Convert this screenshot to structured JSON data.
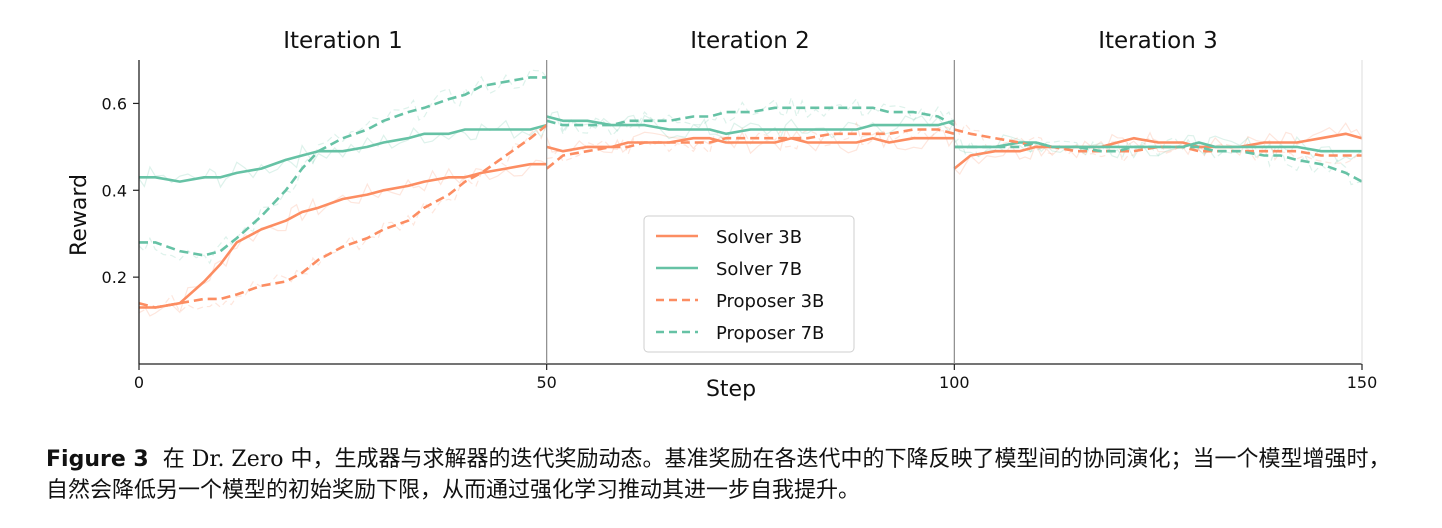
{
  "chart_data": {
    "type": "line",
    "panel_titles": [
      "Iteration 1",
      "Iteration 2",
      "Iteration 3"
    ],
    "xlabel": "Step",
    "ylabel": "Reward",
    "xlim": [
      0,
      150
    ],
    "ylim": [
      0.0,
      0.7
    ],
    "xticks": [
      0,
      50,
      100,
      150
    ],
    "yticks": [
      0.2,
      0.4,
      0.6
    ],
    "panel_boundaries": [
      50,
      100
    ],
    "grid": false,
    "legend_position": "center",
    "series": [
      {
        "name": "Solver 3B",
        "color": "#fc8d62",
        "style": "solid",
        "x": [
          0,
          2,
          5,
          8,
          10,
          12,
          15,
          18,
          20,
          22,
          25,
          28,
          30,
          33,
          35,
          38,
          40,
          42,
          45,
          48,
          50,
          50,
          52,
          55,
          58,
          60,
          62,
          65,
          68,
          70,
          72,
          75,
          78,
          80,
          82,
          85,
          88,
          90,
          92,
          95,
          98,
          100,
          100,
          102,
          105,
          108,
          110,
          112,
          115,
          118,
          120,
          122,
          125,
          128,
          130,
          132,
          135,
          138,
          140,
          142,
          145,
          148,
          150
        ],
        "y": [
          0.13,
          0.13,
          0.14,
          0.19,
          0.23,
          0.28,
          0.31,
          0.33,
          0.35,
          0.36,
          0.38,
          0.39,
          0.4,
          0.41,
          0.42,
          0.43,
          0.43,
          0.44,
          0.45,
          0.46,
          0.46,
          0.5,
          0.49,
          0.5,
          0.5,
          0.51,
          0.51,
          0.51,
          0.52,
          0.52,
          0.51,
          0.51,
          0.51,
          0.52,
          0.51,
          0.51,
          0.51,
          0.52,
          0.51,
          0.52,
          0.52,
          0.52,
          0.45,
          0.48,
          0.49,
          0.49,
          0.5,
          0.5,
          0.5,
          0.5,
          0.51,
          0.52,
          0.51,
          0.51,
          0.5,
          0.5,
          0.5,
          0.51,
          0.51,
          0.51,
          0.52,
          0.53,
          0.52
        ]
      },
      {
        "name": "Solver 7B",
        "color": "#66c2a5",
        "style": "solid",
        "x": [
          0,
          2,
          5,
          8,
          10,
          12,
          15,
          18,
          20,
          22,
          25,
          28,
          30,
          33,
          35,
          38,
          40,
          42,
          45,
          48,
          50,
          50,
          52,
          55,
          58,
          60,
          62,
          65,
          68,
          70,
          72,
          75,
          78,
          80,
          82,
          85,
          88,
          90,
          92,
          95,
          98,
          100,
          100,
          102,
          105,
          108,
          110,
          112,
          115,
          118,
          120,
          122,
          125,
          128,
          130,
          132,
          135,
          138,
          140,
          142,
          145,
          148,
          150
        ],
        "y": [
          0.43,
          0.43,
          0.42,
          0.43,
          0.43,
          0.44,
          0.45,
          0.47,
          0.48,
          0.49,
          0.49,
          0.5,
          0.51,
          0.52,
          0.53,
          0.53,
          0.54,
          0.54,
          0.54,
          0.54,
          0.55,
          0.57,
          0.56,
          0.56,
          0.55,
          0.55,
          0.55,
          0.54,
          0.54,
          0.54,
          0.53,
          0.54,
          0.54,
          0.54,
          0.54,
          0.54,
          0.54,
          0.55,
          0.55,
          0.55,
          0.55,
          0.56,
          0.5,
          0.5,
          0.5,
          0.51,
          0.51,
          0.5,
          0.5,
          0.5,
          0.5,
          0.5,
          0.5,
          0.5,
          0.51,
          0.5,
          0.5,
          0.5,
          0.5,
          0.5,
          0.49,
          0.49,
          0.49
        ]
      },
      {
        "name": "Proposer 3B",
        "color": "#fc8d62",
        "style": "dashed",
        "x": [
          0,
          2,
          5,
          8,
          10,
          12,
          15,
          18,
          20,
          22,
          25,
          28,
          30,
          33,
          35,
          38,
          40,
          42,
          45,
          48,
          50,
          50,
          52,
          55,
          58,
          60,
          62,
          65,
          68,
          70,
          72,
          75,
          78,
          80,
          82,
          85,
          88,
          90,
          92,
          95,
          98,
          100,
          100,
          102,
          105,
          108,
          110,
          112,
          115,
          118,
          120,
          122,
          125,
          128,
          130,
          132,
          135,
          138,
          140,
          142,
          145,
          148,
          150
        ],
        "y": [
          0.14,
          0.13,
          0.14,
          0.15,
          0.15,
          0.16,
          0.18,
          0.19,
          0.21,
          0.24,
          0.27,
          0.29,
          0.31,
          0.33,
          0.36,
          0.39,
          0.42,
          0.44,
          0.48,
          0.52,
          0.55,
          0.45,
          0.48,
          0.49,
          0.5,
          0.5,
          0.51,
          0.51,
          0.51,
          0.51,
          0.52,
          0.52,
          0.52,
          0.52,
          0.52,
          0.53,
          0.53,
          0.53,
          0.53,
          0.54,
          0.54,
          0.53,
          0.54,
          0.53,
          0.52,
          0.51,
          0.5,
          0.5,
          0.49,
          0.49,
          0.49,
          0.49,
          0.5,
          0.5,
          0.49,
          0.49,
          0.49,
          0.49,
          0.49,
          0.49,
          0.48,
          0.48,
          0.48
        ]
      },
      {
        "name": "Proposer 7B",
        "color": "#66c2a5",
        "style": "dashed",
        "x": [
          0,
          2,
          5,
          8,
          10,
          12,
          15,
          18,
          20,
          22,
          25,
          28,
          30,
          33,
          35,
          38,
          40,
          42,
          45,
          48,
          50,
          50,
          52,
          55,
          58,
          60,
          62,
          65,
          68,
          70,
          72,
          75,
          78,
          80,
          82,
          85,
          88,
          90,
          92,
          95,
          98,
          100,
          100,
          102,
          105,
          108,
          110,
          112,
          115,
          118,
          120,
          122,
          125,
          128,
          130,
          132,
          135,
          138,
          140,
          142,
          145,
          148,
          150
        ],
        "y": [
          0.28,
          0.28,
          0.26,
          0.25,
          0.26,
          0.29,
          0.34,
          0.4,
          0.45,
          0.49,
          0.52,
          0.54,
          0.56,
          0.58,
          0.59,
          0.61,
          0.62,
          0.64,
          0.65,
          0.66,
          0.66,
          0.56,
          0.55,
          0.55,
          0.55,
          0.56,
          0.56,
          0.56,
          0.57,
          0.57,
          0.58,
          0.58,
          0.59,
          0.59,
          0.59,
          0.59,
          0.59,
          0.59,
          0.58,
          0.58,
          0.57,
          0.55,
          0.5,
          0.5,
          0.5,
          0.5,
          0.51,
          0.5,
          0.5,
          0.49,
          0.49,
          0.5,
          0.5,
          0.5,
          0.5,
          0.49,
          0.49,
          0.48,
          0.48,
          0.47,
          0.46,
          0.44,
          0.42
        ]
      }
    ]
  },
  "caption": {
    "label": "Figure 3",
    "text": "在 Dr. Zero 中，生成器与求解器的迭代奖励动态。基准奖励在各迭代中的下降反映了模型间的协同演化；当一个模型增强时，自然会降低另一个模型的初始奖励下限，从而通过强化学习推动其进一步自我提升。"
  }
}
